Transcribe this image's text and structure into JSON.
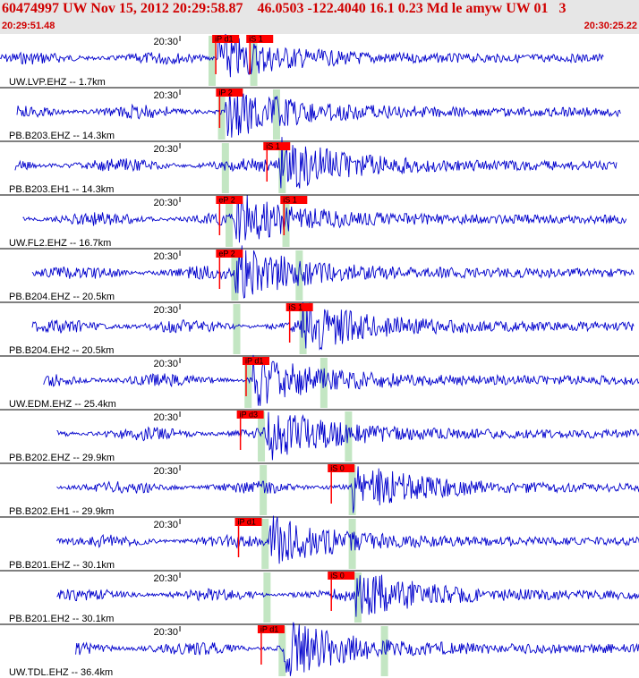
{
  "header": {
    "title": "60474997 UW Nov 15, 2012 20:29:58.87    46.0503 -122.4040 16.1 0.23 Md le amyw UW 01   3",
    "start_time": "20:29:51.48",
    "end_time": "20:30:25.22"
  },
  "chart_data": {
    "type": "line",
    "title": "60474997 UW Nov 15, 2012 20:29:58.87    46.0503 -122.4040 16.1 0.23 Md le amyw UW 01   3",
    "time_window": [
      "20:29:51.48",
      "20:30:25.22"
    ],
    "time_window_seconds": 33.74,
    "minute_tick_label": "20:30",
    "colors": {
      "trace": "#0000cc",
      "pick": "#ff0000",
      "window": "#c3e6c3"
    },
    "series": [
      {
        "name": "UW.LVP.EHZ -- 1.7km",
        "amplitude": 0.45,
        "start_s": 0.0,
        "end_s": 31.9,
        "onset_s": 11.5,
        "p_pick": {
          "label": "iP d1",
          "time_s": 11.3
        },
        "s_pick": {
          "label": "iS 1",
          "time_s": 13.1
        },
        "p_window_s": 11.2,
        "s_window_s": 13.4,
        "tick_s": 9.5
      },
      {
        "name": "PB.B203.EHZ -- 14.3km",
        "amplitude": 0.5,
        "start_s": 0.9,
        "end_s": 32.8,
        "onset_s": 11.9,
        "p_pick": {
          "label": "iP 2",
          "time_s": 11.5
        },
        "s_pick": null,
        "p_window_s": 11.7,
        "s_window_s": 14.6,
        "tick_s": 9.5
      },
      {
        "name": "PB.B203.EH1 -- 14.3km",
        "amplitude": 0.5,
        "start_s": 0.8,
        "end_s": 32.6,
        "onset_s": 14.7,
        "p_pick": null,
        "s_pick": {
          "label": "iS 1",
          "time_s": 14.0
        },
        "p_window_s": 11.9,
        "s_window_s": 14.9,
        "tick_s": 9.5
      },
      {
        "name": "UW.FL2.EHZ -- 16.7km",
        "amplitude": 0.48,
        "start_s": 1.2,
        "end_s": 33.1,
        "onset_s": 12.2,
        "p_pick": {
          "label": "eP 2",
          "time_s": 11.5
        },
        "s_pick": {
          "label": "iS 1",
          "time_s": 14.9
        },
        "p_window_s": 12.1,
        "s_window_s": 15.1,
        "tick_s": 9.5
      },
      {
        "name": "PB.B204.EHZ -- 20.5km",
        "amplitude": 0.5,
        "start_s": 1.7,
        "end_s": 33.5,
        "onset_s": 12.4,
        "p_pick": {
          "label": "eP 2",
          "time_s": 11.5
        },
        "s_pick": null,
        "p_window_s": 12.4,
        "s_window_s": 15.8,
        "tick_s": 9.5
      },
      {
        "name": "PB.B204.EH2 -- 20.5km",
        "amplitude": 0.48,
        "start_s": 1.7,
        "end_s": 33.5,
        "onset_s": 15.9,
        "p_pick": null,
        "s_pick": {
          "label": "iS 1",
          "time_s": 15.2
        },
        "p_window_s": 12.5,
        "s_window_s": 16.0,
        "tick_s": 9.5
      },
      {
        "name": "UW.EDM.EHZ -- 25.4km",
        "amplitude": 0.48,
        "start_s": 2.3,
        "end_s": 34.2,
        "onset_s": 13.3,
        "p_pick": {
          "label": "iP d1",
          "time_s": 12.9
        },
        "s_pick": null,
        "p_window_s": 13.1,
        "s_window_s": 17.1,
        "tick_s": 9.5
      },
      {
        "name": "PB.B202.EHZ -- 29.9km",
        "amplitude": 0.48,
        "start_s": 3.0,
        "end_s": 34.8,
        "onset_s": 14.0,
        "p_pick": {
          "label": "iP d3",
          "time_s": 12.6
        },
        "s_pick": null,
        "p_window_s": 13.8,
        "s_window_s": 18.4,
        "tick_s": 9.5
      },
      {
        "name": "PB.B202.EH1 -- 29.9km",
        "amplitude": 0.45,
        "start_s": 3.0,
        "end_s": 34.7,
        "onset_s": 18.6,
        "p_pick": null,
        "s_pick": {
          "label": "iS 0",
          "time_s": 17.4
        },
        "p_window_s": 13.9,
        "s_window_s": 18.6,
        "tick_s": 9.5
      },
      {
        "name": "PB.B201.EHZ -- 30.1km",
        "amplitude": 0.45,
        "start_s": 3.0,
        "end_s": 34.7,
        "onset_s": 14.2,
        "p_pick": {
          "label": "iP d1",
          "time_s": 12.5
        },
        "s_pick": null,
        "p_window_s": 14.0,
        "s_window_s": 18.6,
        "tick_s": 9.5
      },
      {
        "name": "PB.B201.EH2 -- 30.1km",
        "amplitude": 0.45,
        "start_s": 3.0,
        "end_s": 34.7,
        "onset_s": 18.8,
        "p_pick": null,
        "s_pick": {
          "label": "iS 0",
          "time_s": 17.4
        },
        "p_window_s": 14.1,
        "s_window_s": 18.9,
        "tick_s": 9.5
      },
      {
        "name": "UW.TDL.EHZ -- 36.4km",
        "amplitude": 0.5,
        "start_s": 4.0,
        "end_s": 35.7,
        "onset_s": 15.0,
        "p_pick": {
          "label": "iP d1",
          "time_s": 13.7
        },
        "s_pick": null,
        "p_window_s": 14.9,
        "s_window_s": 20.3,
        "tick_s": 9.5
      }
    ]
  }
}
